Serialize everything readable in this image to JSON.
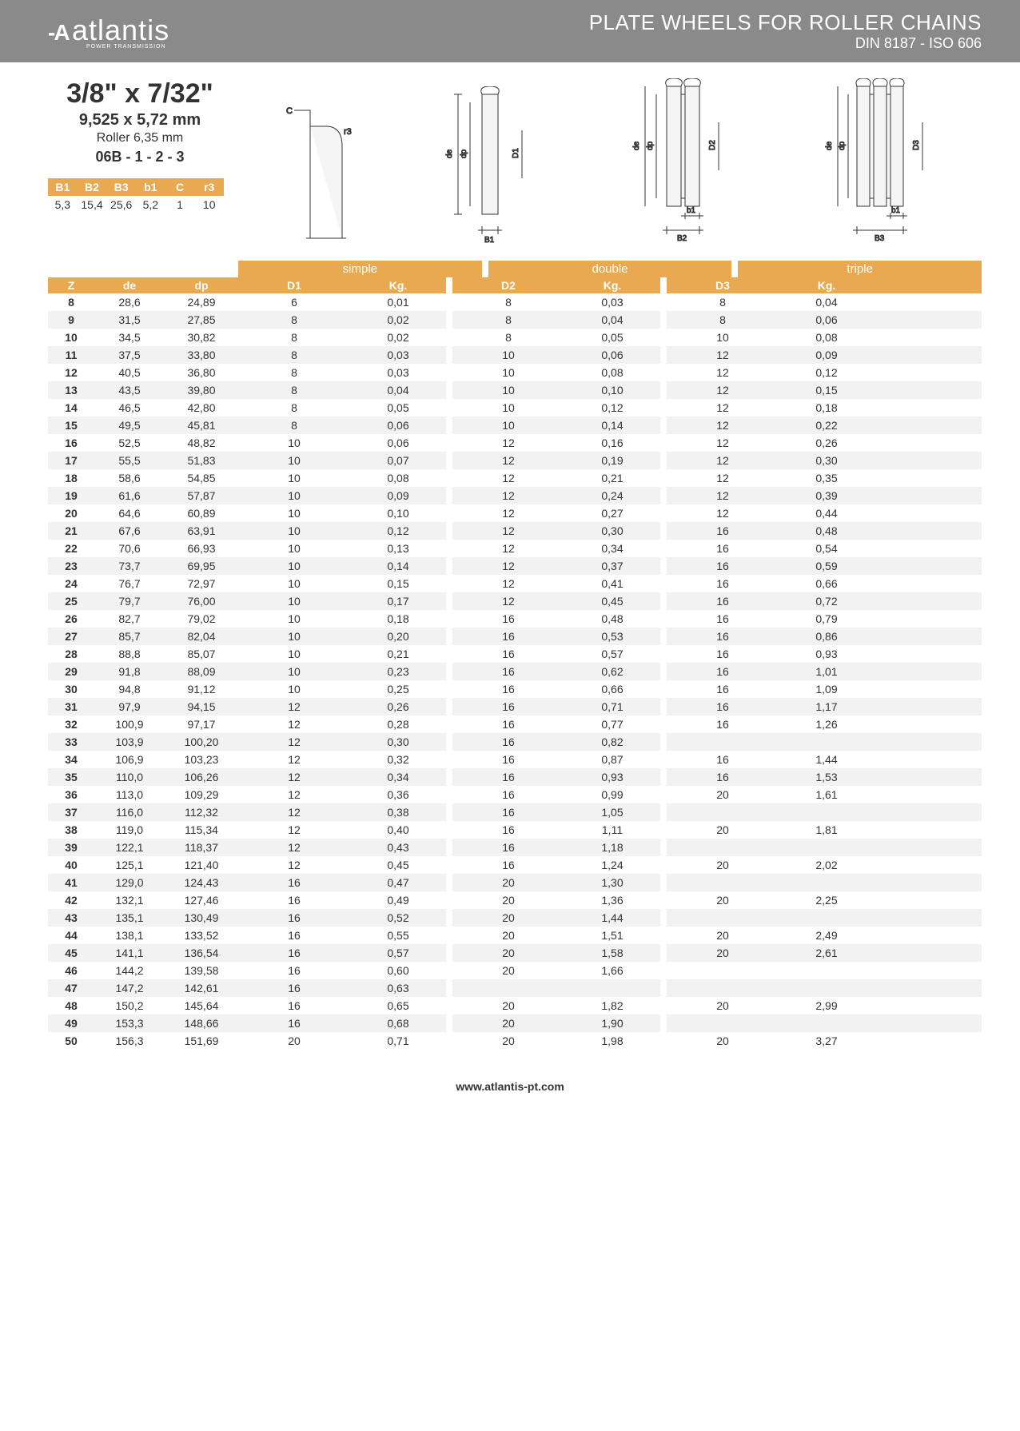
{
  "header": {
    "logo_text": "atlantis",
    "logo_sub": "POWER TRANSMISSION",
    "title1": "PLATE WHEELS FOR ROLLER CHAINS",
    "title2": "DIN 8187 - ISO 606"
  },
  "spec": {
    "title": "3/8\" x 7/32\"",
    "mm": "9,525 x 5,72 mm",
    "roller": "Roller 6,35 mm",
    "code": "06B - 1 - 2 - 3"
  },
  "small_table": {
    "headers": [
      "B1",
      "B2",
      "B3",
      "b1",
      "C",
      "r3"
    ],
    "values": [
      "5,3",
      "15,4",
      "25,6",
      "5,2",
      "1",
      "10"
    ]
  },
  "diagram_labels": {
    "c": "C",
    "r3": "r3",
    "de": "de",
    "dp": "dp",
    "D1": "D1",
    "D2": "D2",
    "D3": "D3",
    "B1": "B1",
    "b1": "b1",
    "B2": "B2",
    "B3": "B3"
  },
  "table": {
    "group_labels": [
      "simple",
      "double",
      "triple"
    ],
    "columns_left": [
      "Z",
      "de",
      "dp"
    ],
    "columns_group": [
      [
        "D1",
        "Kg."
      ],
      [
        "D2",
        "Kg."
      ],
      [
        "D3",
        "Kg."
      ]
    ],
    "rows": [
      {
        "z": "8",
        "de": "28,6",
        "dp": "24,89",
        "d1": "6",
        "kg1": "0,01",
        "d2": "8",
        "kg2": "0,03",
        "d3": "8",
        "kg3": "0,04"
      },
      {
        "z": "9",
        "de": "31,5",
        "dp": "27,85",
        "d1": "8",
        "kg1": "0,02",
        "d2": "8",
        "kg2": "0,04",
        "d3": "8",
        "kg3": "0,06"
      },
      {
        "z": "10",
        "de": "34,5",
        "dp": "30,82",
        "d1": "8",
        "kg1": "0,02",
        "d2": "8",
        "kg2": "0,05",
        "d3": "10",
        "kg3": "0,08"
      },
      {
        "z": "11",
        "de": "37,5",
        "dp": "33,80",
        "d1": "8",
        "kg1": "0,03",
        "d2": "10",
        "kg2": "0,06",
        "d3": "12",
        "kg3": "0,09"
      },
      {
        "z": "12",
        "de": "40,5",
        "dp": "36,80",
        "d1": "8",
        "kg1": "0,03",
        "d2": "10",
        "kg2": "0,08",
        "d3": "12",
        "kg3": "0,12"
      },
      {
        "z": "13",
        "de": "43,5",
        "dp": "39,80",
        "d1": "8",
        "kg1": "0,04",
        "d2": "10",
        "kg2": "0,10",
        "d3": "12",
        "kg3": "0,15"
      },
      {
        "z": "14",
        "de": "46,5",
        "dp": "42,80",
        "d1": "8",
        "kg1": "0,05",
        "d2": "10",
        "kg2": "0,12",
        "d3": "12",
        "kg3": "0,18"
      },
      {
        "z": "15",
        "de": "49,5",
        "dp": "45,81",
        "d1": "8",
        "kg1": "0,06",
        "d2": "10",
        "kg2": "0,14",
        "d3": "12",
        "kg3": "0,22"
      },
      {
        "z": "16",
        "de": "52,5",
        "dp": "48,82",
        "d1": "10",
        "kg1": "0,06",
        "d2": "12",
        "kg2": "0,16",
        "d3": "12",
        "kg3": "0,26"
      },
      {
        "z": "17",
        "de": "55,5",
        "dp": "51,83",
        "d1": "10",
        "kg1": "0,07",
        "d2": "12",
        "kg2": "0,19",
        "d3": "12",
        "kg3": "0,30"
      },
      {
        "z": "18",
        "de": "58,6",
        "dp": "54,85",
        "d1": "10",
        "kg1": "0,08",
        "d2": "12",
        "kg2": "0,21",
        "d3": "12",
        "kg3": "0,35"
      },
      {
        "z": "19",
        "de": "61,6",
        "dp": "57,87",
        "d1": "10",
        "kg1": "0,09",
        "d2": "12",
        "kg2": "0,24",
        "d3": "12",
        "kg3": "0,39"
      },
      {
        "z": "20",
        "de": "64,6",
        "dp": "60,89",
        "d1": "10",
        "kg1": "0,10",
        "d2": "12",
        "kg2": "0,27",
        "d3": "12",
        "kg3": "0,44"
      },
      {
        "z": "21",
        "de": "67,6",
        "dp": "63,91",
        "d1": "10",
        "kg1": "0,12",
        "d2": "12",
        "kg2": "0,30",
        "d3": "16",
        "kg3": "0,48"
      },
      {
        "z": "22",
        "de": "70,6",
        "dp": "66,93",
        "d1": "10",
        "kg1": "0,13",
        "d2": "12",
        "kg2": "0,34",
        "d3": "16",
        "kg3": "0,54"
      },
      {
        "z": "23",
        "de": "73,7",
        "dp": "69,95",
        "d1": "10",
        "kg1": "0,14",
        "d2": "12",
        "kg2": "0,37",
        "d3": "16",
        "kg3": "0,59"
      },
      {
        "z": "24",
        "de": "76,7",
        "dp": "72,97",
        "d1": "10",
        "kg1": "0,15",
        "d2": "12",
        "kg2": "0,41",
        "d3": "16",
        "kg3": "0,66"
      },
      {
        "z": "25",
        "de": "79,7",
        "dp": "76,00",
        "d1": "10",
        "kg1": "0,17",
        "d2": "12",
        "kg2": "0,45",
        "d3": "16",
        "kg3": "0,72"
      },
      {
        "z": "26",
        "de": "82,7",
        "dp": "79,02",
        "d1": "10",
        "kg1": "0,18",
        "d2": "16",
        "kg2": "0,48",
        "d3": "16",
        "kg3": "0,79"
      },
      {
        "z": "27",
        "de": "85,7",
        "dp": "82,04",
        "d1": "10",
        "kg1": "0,20",
        "d2": "16",
        "kg2": "0,53",
        "d3": "16",
        "kg3": "0,86"
      },
      {
        "z": "28",
        "de": "88,8",
        "dp": "85,07",
        "d1": "10",
        "kg1": "0,21",
        "d2": "16",
        "kg2": "0,57",
        "d3": "16",
        "kg3": "0,93"
      },
      {
        "z": "29",
        "de": "91,8",
        "dp": "88,09",
        "d1": "10",
        "kg1": "0,23",
        "d2": "16",
        "kg2": "0,62",
        "d3": "16",
        "kg3": "1,01"
      },
      {
        "z": "30",
        "de": "94,8",
        "dp": "91,12",
        "d1": "10",
        "kg1": "0,25",
        "d2": "16",
        "kg2": "0,66",
        "d3": "16",
        "kg3": "1,09"
      },
      {
        "z": "31",
        "de": "97,9",
        "dp": "94,15",
        "d1": "12",
        "kg1": "0,26",
        "d2": "16",
        "kg2": "0,71",
        "d3": "16",
        "kg3": "1,17"
      },
      {
        "z": "32",
        "de": "100,9",
        "dp": "97,17",
        "d1": "12",
        "kg1": "0,28",
        "d2": "16",
        "kg2": "0,77",
        "d3": "16",
        "kg3": "1,26"
      },
      {
        "z": "33",
        "de": "103,9",
        "dp": "100,20",
        "d1": "12",
        "kg1": "0,30",
        "d2": "16",
        "kg2": "0,82",
        "d3": "",
        "kg3": ""
      },
      {
        "z": "34",
        "de": "106,9",
        "dp": "103,23",
        "d1": "12",
        "kg1": "0,32",
        "d2": "16",
        "kg2": "0,87",
        "d3": "16",
        "kg3": "1,44"
      },
      {
        "z": "35",
        "de": "110,0",
        "dp": "106,26",
        "d1": "12",
        "kg1": "0,34",
        "d2": "16",
        "kg2": "0,93",
        "d3": "16",
        "kg3": "1,53"
      },
      {
        "z": "36",
        "de": "113,0",
        "dp": "109,29",
        "d1": "12",
        "kg1": "0,36",
        "d2": "16",
        "kg2": "0,99",
        "d3": "20",
        "kg3": "1,61"
      },
      {
        "z": "37",
        "de": "116,0",
        "dp": "112,32",
        "d1": "12",
        "kg1": "0,38",
        "d2": "16",
        "kg2": "1,05",
        "d3": "",
        "kg3": ""
      },
      {
        "z": "38",
        "de": "119,0",
        "dp": "115,34",
        "d1": "12",
        "kg1": "0,40",
        "d2": "16",
        "kg2": "1,11",
        "d3": "20",
        "kg3": "1,81"
      },
      {
        "z": "39",
        "de": "122,1",
        "dp": "118,37",
        "d1": "12",
        "kg1": "0,43",
        "d2": "16",
        "kg2": "1,18",
        "d3": "",
        "kg3": ""
      },
      {
        "z": "40",
        "de": "125,1",
        "dp": "121,40",
        "d1": "12",
        "kg1": "0,45",
        "d2": "16",
        "kg2": "1,24",
        "d3": "20",
        "kg3": "2,02"
      },
      {
        "z": "41",
        "de": "129,0",
        "dp": "124,43",
        "d1": "16",
        "kg1": "0,47",
        "d2": "20",
        "kg2": "1,30",
        "d3": "",
        "kg3": ""
      },
      {
        "z": "42",
        "de": "132,1",
        "dp": "127,46",
        "d1": "16",
        "kg1": "0,49",
        "d2": "20",
        "kg2": "1,36",
        "d3": "20",
        "kg3": "2,25"
      },
      {
        "z": "43",
        "de": "135,1",
        "dp": "130,49",
        "d1": "16",
        "kg1": "0,52",
        "d2": "20",
        "kg2": "1,44",
        "d3": "",
        "kg3": ""
      },
      {
        "z": "44",
        "de": "138,1",
        "dp": "133,52",
        "d1": "16",
        "kg1": "0,55",
        "d2": "20",
        "kg2": "1,51",
        "d3": "20",
        "kg3": "2,49"
      },
      {
        "z": "45",
        "de": "141,1",
        "dp": "136,54",
        "d1": "16",
        "kg1": "0,57",
        "d2": "20",
        "kg2": "1,58",
        "d3": "20",
        "kg3": "2,61"
      },
      {
        "z": "46",
        "de": "144,2",
        "dp": "139,58",
        "d1": "16",
        "kg1": "0,60",
        "d2": "20",
        "kg2": "1,66",
        "d3": "",
        "kg3": ""
      },
      {
        "z": "47",
        "de": "147,2",
        "dp": "142,61",
        "d1": "16",
        "kg1": "0,63",
        "d2": "",
        "kg2": "",
        "d3": "",
        "kg3": ""
      },
      {
        "z": "48",
        "de": "150,2",
        "dp": "145,64",
        "d1": "16",
        "kg1": "0,65",
        "d2": "20",
        "kg2": "1,82",
        "d3": "20",
        "kg3": "2,99"
      },
      {
        "z": "49",
        "de": "153,3",
        "dp": "148,66",
        "d1": "16",
        "kg1": "0,68",
        "d2": "20",
        "kg2": "1,90",
        "d3": "",
        "kg3": ""
      },
      {
        "z": "50",
        "de": "156,3",
        "dp": "151,69",
        "d1": "20",
        "kg1": "0,71",
        "d2": "20",
        "kg2": "1,98",
        "d3": "20",
        "kg3": "3,27"
      }
    ]
  },
  "footer": "www.atlantis-pt.com",
  "colors": {
    "header_bg": "#8a8a8a",
    "accent": "#e8a951",
    "row_alt": "#f2f2f2",
    "text": "#333333"
  }
}
